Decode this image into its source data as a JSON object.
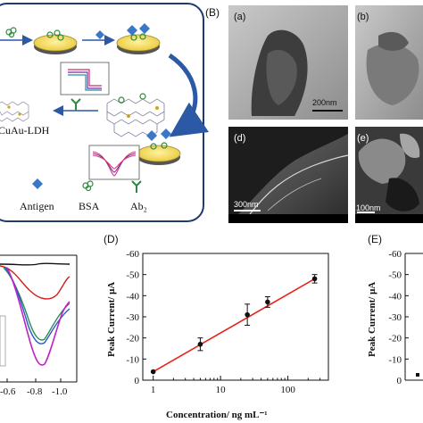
{
  "panel_labels": {
    "B": "(B)",
    "D": "(D)",
    "E": "(E)"
  },
  "scheme": {
    "material_label": "CuAu-LDH",
    "legend": {
      "antigen": "Antigen",
      "bsa": "BSA",
      "ab2": "Ab₂"
    }
  },
  "micrographs": [
    {
      "label": "(a)",
      "scale_bar": "200nm"
    },
    {
      "label": "(b)",
      "scale_bar": ""
    },
    {
      "label": "(d)",
      "scale_bar": "300nm"
    },
    {
      "label": "(e)",
      "scale_bar": "100nm"
    }
  ],
  "dpv_panel": {
    "x_ticks": [
      "-0.6",
      "-0.8",
      "-1.0"
    ]
  },
  "chart_data": [
    {
      "type": "scatter",
      "title": "",
      "xlabel": "Concentration/ ng mL⁻¹",
      "ylabel": "Peak Current/ μA",
      "x_scale": "log",
      "xlim": [
        0.7,
        400
      ],
      "ylim": [
        0,
        -60
      ],
      "x_ticks": [
        "1",
        "10",
        "100"
      ],
      "y_ticks": [
        "0",
        "-10",
        "-20",
        "-30",
        "-40",
        "-50",
        "-60"
      ],
      "x": [
        1,
        5,
        25,
        50,
        250
      ],
      "y": [
        -4,
        -17,
        -31,
        -37,
        -48
      ],
      "error": [
        0,
        3,
        5,
        2.5,
        2
      ],
      "fit_line": {
        "x": [
          1,
          250
        ],
        "y": [
          -4,
          -48
        ],
        "color": "#e8231c"
      },
      "marker_color": "#111111"
    },
    {
      "type": "scatter",
      "title": "",
      "ylabel": "Peak Current/ μA",
      "ylim": [
        0,
        -60
      ],
      "y_ticks": [
        "0",
        "-10",
        "-20",
        "-30",
        "-40",
        "-50",
        "-60"
      ]
    }
  ]
}
